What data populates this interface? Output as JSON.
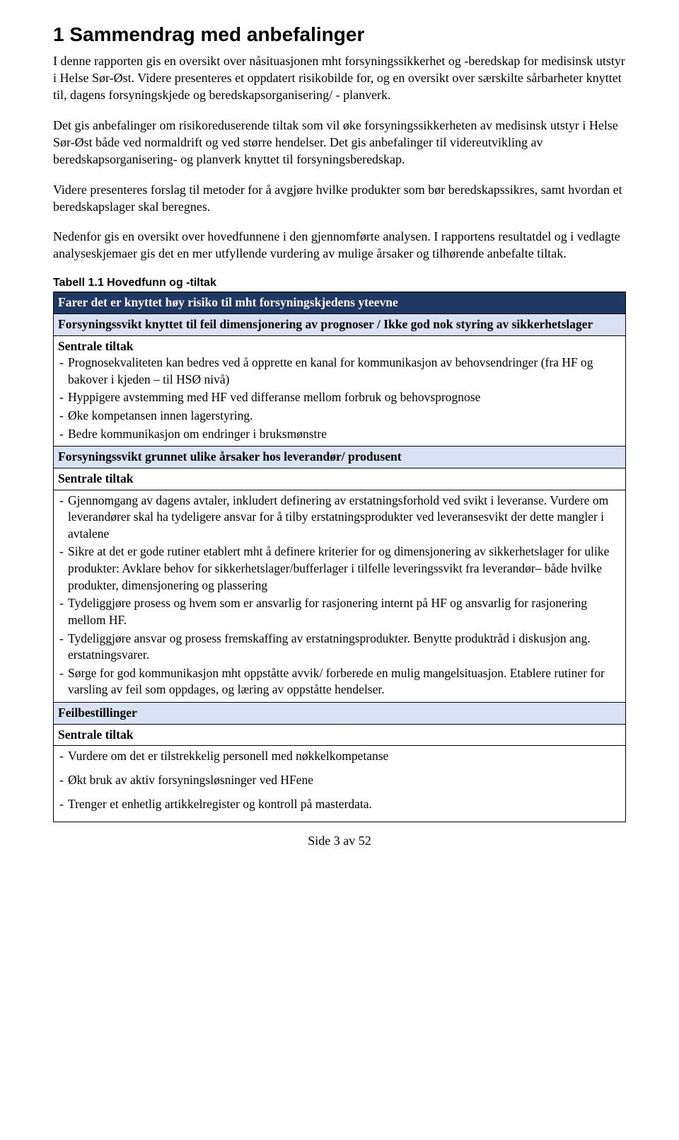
{
  "heading": "1  Sammendrag med anbefalinger",
  "paragraphs": [
    "I denne rapporten gis en oversikt over nåsituasjonen mht forsyningssikkerhet og -beredskap for medisinsk utstyr i Helse Sør-Øst. Videre presenteres et oppdatert risikobilde for, og en oversikt over særskilte sårbarheter knyttet til, dagens forsyningskjede og beredskapsorganisering/ - planverk.",
    "Det gis anbefalinger om risikoreduserende tiltak som vil øke forsyningssikkerheten av medisinsk utstyr i Helse Sør-Øst både ved normaldrift og ved større hendelser. Det gis anbefalinger til videreutvikling av beredskapsorganisering- og planverk knyttet til forsyningsberedskap.",
    "Videre presenteres forslag til metoder for å avgjøre hvilke produkter som bør beredskapssikres, samt hvordan et beredskapslager skal beregnes.",
    "Nedenfor gis en oversikt over hovedfunnene i den gjennomførte analysen. I rapportens resultatdel og i vedlagte analyseskjemaer gis det en mer utfyllende vurdering av mulige årsaker og tilhørende anbefalte tiltak."
  ],
  "tableCaption": "Tabell 1.1 Hovedfunn og -tiltak",
  "table": {
    "header": "Farer det er knyttet høy risiko til mht forsyningskjedens yteevne",
    "sections": [
      {
        "title": "Forsyningssvikt knyttet til feil dimensjonering av prognoser / Ikke god nok styring av sikkerhetslager",
        "subhead": "Sentrale tiltak",
        "items": [
          "Prognosekvaliteten kan bedres ved å opprette en kanal for kommunikasjon av behovsendringer (fra HF og bakover i kjeden – til HSØ nivå)",
          "Hyppigere avstemming med HF ved differanse mellom forbruk og behovsprognose",
          "Øke kompetansen innen lagerstyring.",
          "Bedre kommunikasjon om endringer i bruksmønstre"
        ]
      },
      {
        "title": "Forsyningssvikt grunnet ulike årsaker hos leverandør/ produsent",
        "subhead": "Sentrale tiltak",
        "items": [
          "Gjennomgang av dagens avtaler, inkludert definering av erstatningsforhold ved svikt i leveranse. Vurdere om leverandører skal ha tydeligere ansvar for å tilby erstatningsprodukter ved leveransesvikt der dette mangler i avtalene",
          "Sikre at det er gode rutiner etablert mht å definere kriterier for og dimensjonering av sikkerhetslager for ulike produkter: Avklare behov for sikkerhetslager/bufferlager i tilfelle leveringssvikt fra leverandør– både hvilke produkter, dimensjonering og plassering",
          "Tydeliggjøre prosess og hvem som er ansvarlig for rasjonering internt på HF og ansvarlig for rasjonering mellom HF.",
          "Tydeliggjøre ansvar og prosess fremskaffing av erstatningsprodukter. Benytte produktråd i diskusjon ang. erstatningsvarer.",
          "Sørge for god kommunikasjon mht oppståtte avvik/ forberede en mulig mangelsituasjon. Etablere rutiner for varsling av feil som oppdages, og læring av oppståtte hendelser."
        ]
      },
      {
        "title": "Feilbestillinger",
        "subhead": "Sentrale tiltak",
        "items": [
          "Vurdere om det er tilstrekkelig personell med nøkkelkompetanse",
          "Økt bruk av aktiv forsyningsløsninger ved HFene",
          "Trenger et enhetlig artikkelregister og kontroll på masterdata."
        ]
      }
    ]
  },
  "footer": "Side 3 av 52"
}
